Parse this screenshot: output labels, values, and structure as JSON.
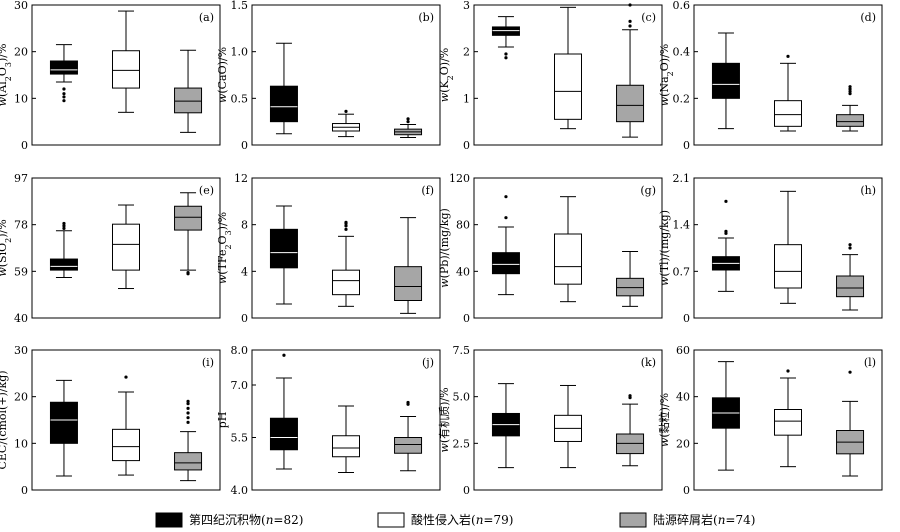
{
  "legend": [
    {
      "prefix": "第四纪沉积物(",
      "n": "n",
      "suffix": "=82)",
      "color": "#000000"
    },
    {
      "prefix": "酸性侵入岩(",
      "n": "n",
      "suffix": "=79)",
      "color": "#ffffff"
    },
    {
      "prefix": "陆源碎屑岩(",
      "n": "n",
      "suffix": "=74)",
      "color": "#a6a6a6"
    }
  ],
  "chart_data": [
    {
      "type": "box",
      "label": "(a)",
      "ylabel": [
        {
          "t": "w",
          "i": true
        },
        {
          "t": "(Al"
        },
        {
          "t": "2",
          "sub": true
        },
        {
          "t": "O"
        },
        {
          "t": "3",
          "sub": true
        },
        {
          "t": ")/%"
        }
      ],
      "ylim": [
        0,
        30
      ],
      "yticks": [
        0,
        10,
        20,
        30
      ],
      "tick_labels": [
        "0",
        "10",
        "20",
        "30"
      ],
      "boxes": [
        {
          "min": 13.5,
          "q1": 15.2,
          "median": 16.1,
          "q3": 18.0,
          "max": 21.5,
          "outliers": [
            9.5,
            10.3,
            11.0,
            12.0
          ]
        },
        {
          "min": 7.0,
          "q1": 12.2,
          "median": 16.0,
          "q3": 20.2,
          "max": 28.7,
          "outliers": []
        },
        {
          "min": 2.7,
          "q1": 6.9,
          "median": 9.4,
          "q3": 12.2,
          "max": 20.3,
          "outliers": []
        }
      ]
    },
    {
      "type": "box",
      "label": "(b)",
      "ylabel": [
        {
          "t": "w",
          "i": true
        },
        {
          "t": "(CaO)/%"
        }
      ],
      "ylim": [
        0,
        1.5
      ],
      "yticks": [
        0,
        0.5,
        1.0,
        1.5
      ],
      "tick_labels": [
        "0",
        "0.5",
        "1.0",
        "1.5"
      ],
      "boxes": [
        {
          "min": 0.12,
          "q1": 0.25,
          "median": 0.41,
          "q3": 0.63,
          "max": 1.09,
          "outliers": []
        },
        {
          "min": 0.09,
          "q1": 0.15,
          "median": 0.19,
          "q3": 0.23,
          "max": 0.33,
          "outliers": [
            0.36
          ]
        },
        {
          "min": 0.08,
          "q1": 0.11,
          "median": 0.14,
          "q3": 0.17,
          "max": 0.22,
          "outliers": [
            0.25,
            0.28
          ]
        }
      ]
    },
    {
      "type": "box",
      "label": "(c)",
      "ylabel": [
        {
          "t": "w",
          "i": true
        },
        {
          "t": "(K"
        },
        {
          "t": "2",
          "sub": true
        },
        {
          "t": "O)/%"
        }
      ],
      "ylim": [
        0,
        3
      ],
      "yticks": [
        0,
        1,
        2,
        3
      ],
      "tick_labels": [
        "0",
        "1",
        "2",
        "3"
      ],
      "boxes": [
        {
          "min": 2.1,
          "q1": 2.35,
          "median": 2.45,
          "q3": 2.53,
          "max": 2.75,
          "outliers": [
            1.87,
            1.95
          ]
        },
        {
          "min": 0.35,
          "q1": 0.55,
          "median": 1.15,
          "q3": 1.95,
          "max": 2.95,
          "outliers": []
        },
        {
          "min": 0.17,
          "q1": 0.5,
          "median": 0.85,
          "q3": 1.28,
          "max": 2.47,
          "outliers": [
            2.55,
            2.65,
            3.0
          ]
        }
      ]
    },
    {
      "type": "box",
      "label": "(d)",
      "ylabel": [
        {
          "t": "w",
          "i": true
        },
        {
          "t": "(Na"
        },
        {
          "t": "2",
          "sub": true
        },
        {
          "t": "O)/%"
        }
      ],
      "ylim": [
        0,
        0.6
      ],
      "yticks": [
        0,
        0.2,
        0.4,
        0.6
      ],
      "tick_labels": [
        "0",
        "0.2",
        "0.4",
        "0.6"
      ],
      "boxes": [
        {
          "min": 0.07,
          "q1": 0.2,
          "median": 0.26,
          "q3": 0.35,
          "max": 0.48,
          "outliers": []
        },
        {
          "min": 0.06,
          "q1": 0.08,
          "median": 0.13,
          "q3": 0.19,
          "max": 0.35,
          "outliers": [
            0.38
          ]
        },
        {
          "min": 0.06,
          "q1": 0.08,
          "median": 0.1,
          "q3": 0.13,
          "max": 0.17,
          "outliers": [
            0.22,
            0.23,
            0.24,
            0.25
          ]
        }
      ]
    },
    {
      "type": "box",
      "label": "(e)",
      "ylabel": [
        {
          "t": "w",
          "i": true
        },
        {
          "t": "(SiO"
        },
        {
          "t": "2",
          "sub": true
        },
        {
          "t": ")/%"
        }
      ],
      "ylim": [
        40,
        97
      ],
      "yticks": [
        40,
        59,
        78,
        97
      ],
      "tick_labels": [
        "40",
        "59",
        "78",
        "97"
      ],
      "boxes": [
        {
          "min": 56.5,
          "q1": 59.5,
          "median": 61.0,
          "q3": 64.0,
          "max": 75.5,
          "outliers": [
            76.5,
            77.5,
            78.5
          ]
        },
        {
          "min": 52.0,
          "q1": 59.5,
          "median": 70.0,
          "q3": 78.2,
          "max": 86.0,
          "outliers": []
        },
        {
          "min": 59.5,
          "q1": 75.8,
          "median": 81.0,
          "q3": 85.5,
          "max": 91.0,
          "outliers": [
            58.0,
            58.5
          ]
        }
      ]
    },
    {
      "type": "box",
      "label": "(f)",
      "ylabel": [
        {
          "t": "w",
          "i": true
        },
        {
          "t": "(TFe"
        },
        {
          "t": "2",
          "sub": true
        },
        {
          "t": "O"
        },
        {
          "t": "3",
          "sub": true
        },
        {
          "t": ")/%"
        }
      ],
      "ylim": [
        0,
        12
      ],
      "yticks": [
        0,
        4,
        8,
        12
      ],
      "tick_labels": [
        "0",
        "4",
        "8",
        "12"
      ],
      "boxes": [
        {
          "min": 1.2,
          "q1": 4.3,
          "median": 5.6,
          "q3": 7.6,
          "max": 9.6,
          "outliers": []
        },
        {
          "min": 1.0,
          "q1": 2.0,
          "median": 3.2,
          "q3": 4.1,
          "max": 7.0,
          "outliers": [
            7.6,
            7.9,
            8.1,
            8.2
          ]
        },
        {
          "min": 0.4,
          "q1": 1.5,
          "median": 2.7,
          "q3": 4.4,
          "max": 8.6,
          "outliers": []
        }
      ]
    },
    {
      "type": "box",
      "label": "(g)",
      "ylabel": [
        {
          "t": "w",
          "i": true
        },
        {
          "t": "(Pb)/(mg/kg)"
        }
      ],
      "ylim": [
        0,
        120
      ],
      "yticks": [
        0,
        40,
        80,
        120
      ],
      "tick_labels": [
        "0",
        "40",
        "80",
        "120"
      ],
      "boxes": [
        {
          "min": 20,
          "q1": 38,
          "median": 46,
          "q3": 56,
          "max": 78,
          "outliers": [
            86,
            104
          ]
        },
        {
          "min": 14,
          "q1": 29,
          "median": 44,
          "q3": 72,
          "max": 104,
          "outliers": []
        },
        {
          "min": 10,
          "q1": 19,
          "median": 26,
          "q3": 34,
          "max": 57,
          "outliers": []
        }
      ]
    },
    {
      "type": "box",
      "label": "(h)",
      "ylabel": [
        {
          "t": "w",
          "i": true
        },
        {
          "t": "(Tl)/(mg/kg)"
        }
      ],
      "ylim": [
        0,
        2.1
      ],
      "yticks": [
        0,
        0.7,
        1.4,
        2.1
      ],
      "tick_labels": [
        "0",
        "0.7",
        "1.4",
        "2.1"
      ],
      "boxes": [
        {
          "min": 0.4,
          "q1": 0.72,
          "median": 0.82,
          "q3": 0.92,
          "max": 1.2,
          "outliers": [
            1.27,
            1.3,
            1.75
          ]
        },
        {
          "min": 0.22,
          "q1": 0.45,
          "median": 0.7,
          "q3": 1.1,
          "max": 1.9,
          "outliers": []
        },
        {
          "min": 0.12,
          "q1": 0.32,
          "median": 0.45,
          "q3": 0.63,
          "max": 0.95,
          "outliers": [
            1.05,
            1.1
          ]
        }
      ]
    },
    {
      "type": "box",
      "label": "(i)",
      "ylabel": [
        {
          "t": "CEC/(cmol(+)/kg)"
        }
      ],
      "ylim": [
        0,
        30
      ],
      "yticks": [
        0,
        10,
        20,
        30
      ],
      "tick_labels": [
        "0",
        "10",
        "20",
        "30"
      ],
      "boxes": [
        {
          "min": 3.0,
          "q1": 10.0,
          "median": 15.0,
          "q3": 18.8,
          "max": 23.5,
          "outliers": []
        },
        {
          "min": 3.2,
          "q1": 6.3,
          "median": 9.3,
          "q3": 13.0,
          "max": 21.0,
          "outliers": [
            24.2
          ]
        },
        {
          "min": 2.0,
          "q1": 4.3,
          "median": 5.8,
          "q3": 8.0,
          "max": 12.5,
          "outliers": [
            14.5,
            15.5,
            16.5,
            17.5,
            18.5,
            19.0
          ]
        }
      ]
    },
    {
      "type": "box",
      "label": "(j)",
      "ylabel": [
        {
          "t": "pH"
        }
      ],
      "ylim": [
        4.0,
        8.0
      ],
      "yticks": [
        4.0,
        5.5,
        7.0,
        8.0
      ],
      "tick_labels": [
        "4.0",
        "5.5",
        "7.0",
        "8.0"
      ],
      "boxes": [
        {
          "min": 4.6,
          "q1": 5.15,
          "median": 5.5,
          "q3": 6.05,
          "max": 7.2,
          "outliers": [
            7.85
          ]
        },
        {
          "min": 4.5,
          "q1": 4.95,
          "median": 5.2,
          "q3": 5.55,
          "max": 6.4,
          "outliers": []
        },
        {
          "min": 4.55,
          "q1": 5.05,
          "median": 5.3,
          "q3": 5.5,
          "max": 6.1,
          "outliers": [
            6.45,
            6.5
          ]
        }
      ]
    },
    {
      "type": "box",
      "label": "(k)",
      "ylabel": [
        {
          "t": "w",
          "i": true
        },
        {
          "t": "(有机质)/%"
        }
      ],
      "ylim": [
        0,
        7.5
      ],
      "yticks": [
        0,
        2.5,
        5.0,
        7.5
      ],
      "tick_labels": [
        "0",
        "2.5",
        "5.0",
        "7.5"
      ],
      "boxes": [
        {
          "min": 1.2,
          "q1": 2.9,
          "median": 3.5,
          "q3": 4.1,
          "max": 5.7,
          "outliers": []
        },
        {
          "min": 1.2,
          "q1": 2.6,
          "median": 3.3,
          "q3": 4.0,
          "max": 5.6,
          "outliers": []
        },
        {
          "min": 1.3,
          "q1": 1.95,
          "median": 2.5,
          "q3": 3.0,
          "max": 4.6,
          "outliers": [
            4.95,
            5.05
          ]
        }
      ]
    },
    {
      "type": "box",
      "label": "(l)",
      "ylabel": [
        {
          "t": "w",
          "i": true
        },
        {
          "t": "(黏粒)/%"
        }
      ],
      "ylim": [
        0,
        60
      ],
      "yticks": [
        0,
        20,
        40,
        60
      ],
      "tick_labels": [
        "0",
        "20",
        "40",
        "60"
      ],
      "boxes": [
        {
          "min": 8.5,
          "q1": 26.5,
          "median": 33.0,
          "q3": 39.5,
          "max": 55.0,
          "outliers": []
        },
        {
          "min": 10.0,
          "q1": 23.5,
          "median": 29.5,
          "q3": 34.5,
          "max": 48.0,
          "outliers": [
            51.0
          ]
        },
        {
          "min": 6.0,
          "q1": 15.5,
          "median": 20.5,
          "q3": 25.5,
          "max": 38.0,
          "outliers": [
            50.5
          ]
        }
      ]
    }
  ]
}
